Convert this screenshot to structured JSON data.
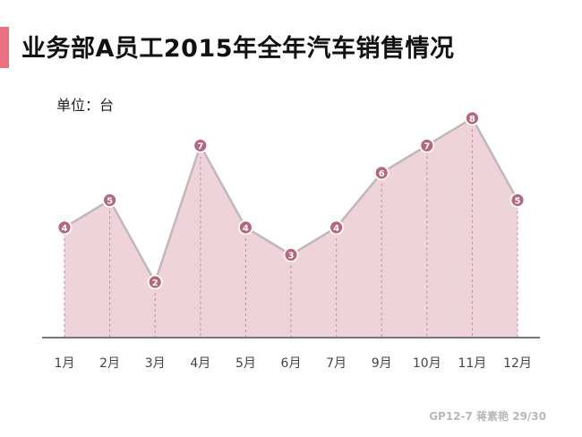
{
  "page": {
    "title": "业务部A员工2015年全年汽车销售情况",
    "unit_label": "单位：台",
    "footer": "GP12-7  蒋素艳 29/30"
  },
  "colors": {
    "accent": "#e8707f",
    "area_fill": "#eed3da",
    "line": "#c0b8ba",
    "marker": "#b5677b",
    "axis": "#777777"
  },
  "chart_data": {
    "type": "area",
    "title": "业务部A员工2015年全年汽车销售情况",
    "unit": "单位：台",
    "categories": [
      "1月",
      "2月",
      "3月",
      "4月",
      "5月",
      "6月",
      "7月",
      "9月",
      "10月",
      "11月",
      "12月"
    ],
    "values": [
      4,
      5,
      2,
      7,
      4,
      3,
      4,
      6,
      7,
      8,
      5
    ],
    "ylim": [
      0,
      8
    ],
    "grid": false,
    "legend": "none",
    "data_labels": true
  }
}
